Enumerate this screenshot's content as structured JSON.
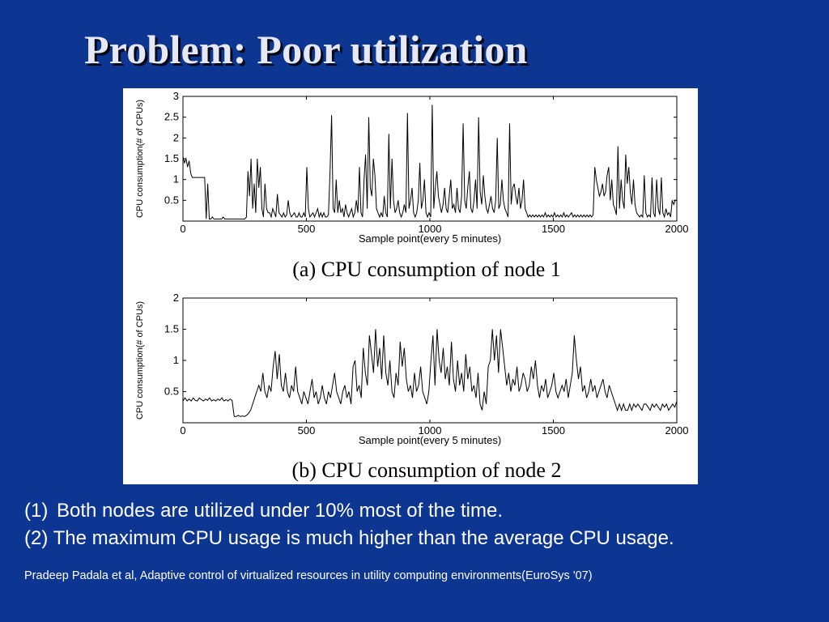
{
  "slide": {
    "title": "Problem: Poor utilization",
    "bullets": [
      {
        "num": "(1)",
        "text": "Both nodes are utilized under 10% most of the time."
      },
      {
        "num": "(2)",
        "text": "The maximum CPU usage is much higher than the average CPU usage."
      }
    ],
    "citation": "Pradeep Padala et al, Adaptive control of virtualized resources in utility computing environments(EuroSys '07)"
  },
  "chart_data": [
    {
      "type": "line",
      "caption": "(a) CPU consumption of node 1",
      "xlabel": "Sample point(every 5 minutes)",
      "ylabel": "CPU consumption(# of CPUs)",
      "xlim": [
        0,
        2000
      ],
      "ylim": [
        0,
        3
      ],
      "xticks": [
        0,
        500,
        1000,
        1500,
        2000
      ],
      "yticks": [
        0.5,
        1,
        1.5,
        2,
        2.5,
        3
      ],
      "grid": false,
      "line_color": "#000000",
      "series": [
        {
          "values": [
            1.55,
            1.4,
            1.5,
            1.3,
            1.45,
            1.15,
            1.05,
            1.05,
            1.05,
            1.05,
            1.05,
            1.05,
            1.05,
            1.05,
            1.05,
            0.05,
            0.9,
            0.05,
            0.05,
            0.1,
            0.05,
            0.05,
            0.05,
            0.05,
            0.05,
            0.05,
            0.1,
            0.05,
            0.05,
            0.05,
            0.05,
            0.05,
            0.05,
            0.05,
            0.05,
            0.05,
            0.05,
            0.05,
            0.05,
            0.05,
            0.05,
            0.1,
            1.2,
            0.6,
            1.5,
            0.3,
            0.9,
            0.2,
            1.5,
            0.8,
            1.3,
            0.3,
            0.1,
            0.9,
            0.3,
            0.2,
            0.2,
            0.1,
            0.3,
            0.2,
            0.1,
            0.65,
            0.2,
            0.15,
            0.1,
            0.2,
            0.1,
            0.15,
            0.5,
            0.2,
            0.1,
            0.15,
            0.2,
            0.1,
            0.1,
            0.2,
            0.1,
            0.1,
            0.2,
            0.1,
            1.3,
            0.3,
            0.1,
            0.15,
            0.2,
            0.1,
            0.2,
            0.3,
            0.1,
            0.2,
            0.1,
            0.2,
            0.1,
            0.1,
            0.15,
            1.2,
            2.55,
            0.3,
            0.2,
            1.0,
            0.2,
            0.5,
            0.2,
            0.3,
            0.1,
            0.4,
            0.2,
            0.1,
            0.2,
            0.3,
            0.1,
            0.2,
            0.5,
            0.2,
            1.3,
            0.2,
            0.1,
            1.0,
            1.6,
            0.3,
            2.5,
            0.8,
            0.6,
            1.5,
            1.1,
            0.3,
            0.2,
            0.1,
            0.2,
            0.1,
            0.6,
            0.2,
            0.1,
            2.1,
            0.3,
            1.5,
            0.5,
            0.2,
            0.3,
            0.5,
            0.2,
            0.1,
            0.2,
            0.4,
            0.2,
            2.6,
            0.3,
            0.5,
            0.8,
            0.2,
            0.1,
            0.2,
            0.5,
            1.4,
            0.3,
            0.5,
            1.0,
            0.2,
            0.1,
            0.2,
            0.1,
            2.8,
            0.3,
            0.8,
            1.2,
            0.6,
            0.4,
            0.2,
            0.4,
            0.8,
            0.3,
            0.2,
            0.6,
            1.0,
            0.3,
            0.4,
            0.2,
            0.8,
            0.3,
            0.2,
            0.6,
            2.35,
            0.5,
            0.3,
            0.8,
            1.2,
            0.3,
            0.2,
            0.5,
            1.0,
            0.3,
            2.5,
            0.7,
            0.4,
            1.1,
            0.6,
            0.3,
            0.2,
            0.4,
            0.6,
            0.3,
            0.2,
            0.5,
            2.0,
            0.3,
            0.4,
            1.0,
            0.5,
            0.3,
            0.2,
            0.1,
            2.35,
            0.4,
            0.8,
            0.9,
            0.6,
            0.4,
            0.8,
            0.3,
            0.5,
            1.0,
            0.3,
            0.2,
            0.1,
            0.15,
            0.1,
            0.15,
            0.1,
            0.15,
            0.1,
            0.15,
            0.1,
            0.15,
            0.1,
            0.2,
            0.1,
            0.15,
            0.1,
            0.15,
            0.1,
            0.2,
            0.1,
            0.15,
            0.1,
            0.15,
            0.1,
            0.2,
            0.1,
            0.15,
            0.1,
            0.15,
            0.2,
            0.1,
            0.15,
            0.1,
            0.15,
            0.1,
            0.15,
            0.1,
            0.15,
            0.1,
            0.15,
            0.1,
            0.15,
            0.1,
            0.15,
            1.3,
            1.0,
            0.8,
            0.6,
            0.7,
            0.9,
            0.6,
            0.7,
            1.1,
            1.3,
            0.5,
            1.0,
            0.4,
            0.3,
            0.15,
            1.8,
            0.3,
            1.0,
            0.5,
            0.3,
            1.6,
            0.9,
            1.3,
            0.7,
            0.4,
            1.0,
            0.4,
            0.2,
            0.15,
            0.1,
            0.15,
            0.1,
            1.1,
            0.2,
            0.1,
            0.15,
            0.1,
            1.05,
            0.2,
            0.1,
            1.0,
            0.3,
            0.15,
            1.05,
            0.2,
            0.1,
            0.3,
            0.15,
            0.2,
            0.1,
            0.5,
            0.4,
            0.5,
            0.5
          ]
        }
      ]
    },
    {
      "type": "line",
      "caption": "(b) CPU consumption of node 2",
      "xlabel": "Sample point(every 5 minutes)",
      "ylabel": "CPU consumption(# of CPUs)",
      "xlim": [
        0,
        2000
      ],
      "ylim": [
        0,
        2
      ],
      "xticks": [
        0,
        500,
        1000,
        1500,
        2000
      ],
      "yticks": [
        0.5,
        1,
        1.5,
        2
      ],
      "grid": false,
      "line_color": "#000000",
      "series": [
        {
          "values": [
            0.35,
            0.4,
            0.35,
            0.38,
            0.35,
            0.4,
            0.36,
            0.35,
            0.4,
            0.37,
            0.35,
            0.38,
            0.36,
            0.4,
            0.35,
            0.37,
            0.35,
            0.38,
            0.36,
            0.4,
            0.35,
            0.37,
            0.35,
            0.38,
            0.36,
            0.1,
            0.1,
            0.12,
            0.1,
            0.11,
            0.1,
            0.12,
            0.15,
            0.2,
            0.3,
            0.4,
            0.5,
            0.6,
            0.5,
            0.8,
            0.5,
            0.4,
            0.6,
            0.5,
            0.9,
            1.15,
            0.7,
            1.1,
            0.6,
            0.5,
            0.8,
            0.5,
            0.4,
            0.6,
            0.5,
            0.9,
            0.5,
            0.4,
            0.3,
            0.5,
            0.4,
            0.3,
            0.5,
            0.7,
            0.4,
            0.5,
            0.3,
            0.4,
            0.6,
            0.4,
            0.3,
            0.5,
            0.4,
            0.6,
            0.8,
            0.5,
            0.4,
            0.3,
            0.5,
            0.6,
            0.4,
            0.5,
            0.3,
            0.9,
            1.0,
            0.5,
            0.6,
            0.4,
            1.2,
            0.8,
            0.6,
            1.4,
            1.1,
            0.8,
            1.5,
            0.9,
            1.2,
            0.7,
            1.4,
            0.8,
            0.6,
            1.0,
            0.5,
            0.4,
            0.8,
            0.6,
            1.3,
            0.9,
            1.2,
            0.7,
            0.5,
            0.6,
            0.4,
            0.8,
            0.5,
            0.6,
            0.9,
            0.5,
            0.4,
            0.3,
            0.5,
            1.0,
            1.4,
            0.6,
            1.5,
            1.0,
            0.8,
            1.2,
            0.7,
            0.9,
            0.6,
            1.3,
            0.7,
            0.5,
            1.0,
            0.6,
            0.8,
            0.5,
            1.1,
            0.7,
            0.9,
            0.5,
            0.6,
            0.4,
            0.8,
            0.3,
            0.2,
            0.5,
            0.3,
            0.9,
            1.0,
            1.5,
            1.0,
            1.4,
            0.8,
            1.5,
            1.2,
            0.9,
            0.6,
            0.8,
            0.5,
            0.7,
            0.6,
            0.9,
            0.5,
            0.6,
            0.8,
            0.7,
            0.5,
            0.6,
            0.9,
            0.7,
            1.0,
            0.6,
            0.4,
            0.6,
            0.5,
            0.7,
            0.4,
            0.5,
            0.6,
            0.8,
            0.5,
            0.4,
            0.5,
            0.6,
            0.5,
            0.7,
            0.4,
            0.6,
            0.8,
            1.4,
            1.0,
            0.7,
            0.9,
            0.5,
            0.6,
            0.4,
            0.5,
            0.7,
            0.5,
            0.6,
            0.4,
            0.5,
            0.6,
            0.7,
            0.5,
            0.4,
            0.6,
            0.5,
            0.4,
            0.3,
            0.2,
            0.3,
            0.2,
            0.3,
            0.2,
            0.2,
            0.3,
            0.2,
            0.3,
            0.25,
            0.3,
            0.25,
            0.2,
            0.3,
            0.3,
            0.25,
            0.2,
            0.3,
            0.25,
            0.3,
            0.25,
            0.2,
            0.3,
            0.25,
            0.3,
            0.2,
            0.25,
            0.3,
            0.25,
            0.35
          ]
        }
      ]
    }
  ]
}
